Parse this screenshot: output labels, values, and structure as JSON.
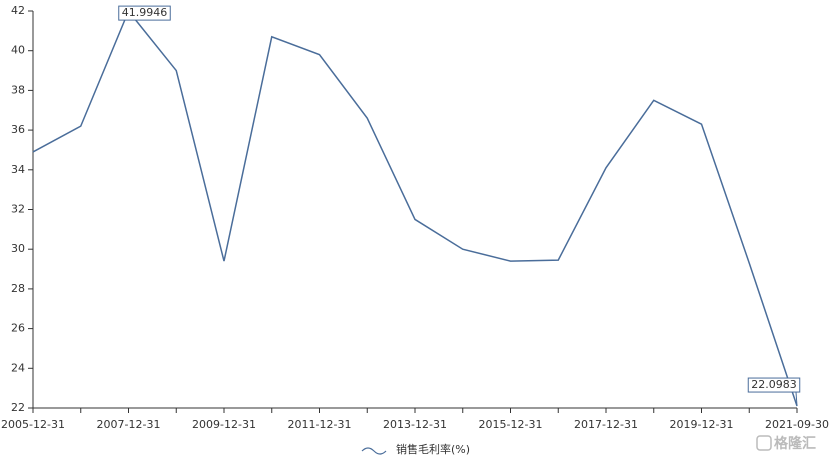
{
  "chart_data": {
    "type": "line",
    "categories": [
      "2005-12-31",
      null,
      "2007-12-31",
      null,
      "2009-12-31",
      null,
      "2011-12-31",
      null,
      "2013-12-31",
      null,
      "2015-12-31",
      null,
      "2017-12-31",
      null,
      "2019-12-31",
      null,
      "2021-09-30"
    ],
    "series": [
      {
        "name": "销售毛利率(%)",
        "color": "#4a6d9a",
        "values": [
          34.9,
          36.2,
          41.9946,
          39.0,
          29.4,
          40.7,
          39.8,
          36.6,
          31.5,
          30.0,
          29.4,
          29.45,
          34.1,
          37.5,
          36.3,
          29.3,
          22.0983
        ]
      }
    ],
    "ylim": [
      22,
      42
    ],
    "yticks": [
      22,
      24,
      26,
      28,
      30,
      32,
      34,
      36,
      38,
      40,
      42
    ],
    "labeled_points": [
      2,
      16
    ],
    "watermark": "格隆汇"
  }
}
